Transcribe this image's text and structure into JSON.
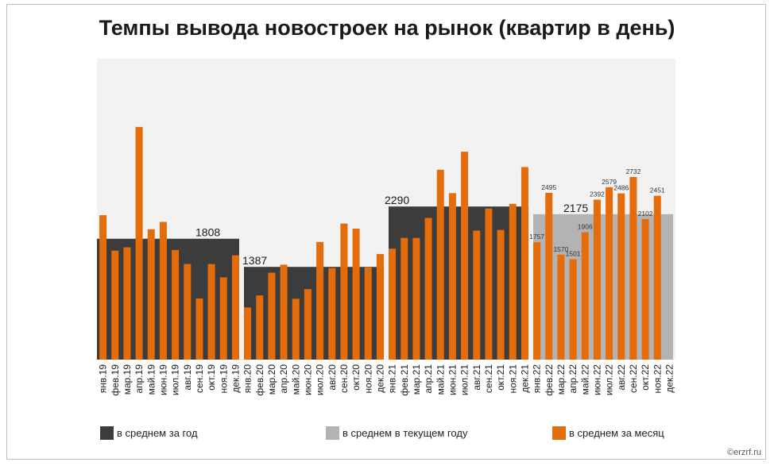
{
  "title": "Темпы вывода новостроек на рынок (квартир в день)",
  "watermark": "©erzrf.ru",
  "colors": {
    "plot_bg": "#f2f2f2",
    "year_avg": "#3c3c3c",
    "current_year_avg": "#b3b3b3",
    "monthly": "#e46c0a"
  },
  "legend": [
    {
      "label": "в среднем за год",
      "color": "#3c3c3c"
    },
    {
      "label": "в среднем в текущем году",
      "color": "#b3b3b3"
    },
    {
      "label": "в среднем за месяц",
      "color": "#e46c0a"
    }
  ],
  "chart_data": {
    "type": "bar",
    "title": "Темпы вывода новостроек на рынок (квартир в день)",
    "ylim": [
      0,
      4500
    ],
    "grid": false,
    "legend_position": "bottom",
    "categories": [
      "янв.19",
      "фев.19",
      "мар.19",
      "апр.19",
      "май.19",
      "июн.19",
      "июл.19",
      "авг.19",
      "сен.19",
      "окт.19",
      "ноя.19",
      "дек.19",
      "янв.20",
      "фев.20",
      "мар.20",
      "апр.20",
      "май.20",
      "июн.20",
      "июл.20",
      "авг.20",
      "сен.20",
      "окт.20",
      "ноя.20",
      "дек.20",
      "янв.21",
      "фев.21",
      "мар.21",
      "апр.21",
      "май.21",
      "июн.21",
      "июл.21",
      "авг.21",
      "сен.21",
      "окт.21",
      "ноя.21",
      "дек.21",
      "янв.22",
      "фев.22",
      "мар.22",
      "апр.22",
      "май.22",
      "июн.22",
      "июл.22",
      "авг.22",
      "сен.22",
      "окт.22",
      "ноя.22",
      "дек.22"
    ],
    "annual_averages": [
      {
        "period": "2019",
        "value": 1808,
        "label": "1808",
        "kind": "year"
      },
      {
        "period": "2020",
        "value": 1387,
        "label": "1387",
        "kind": "year"
      },
      {
        "period": "2021",
        "value": 2290,
        "label": "2290",
        "kind": "year"
      },
      {
        "period": "2022",
        "value": 2175,
        "label": "2175",
        "kind": "current_year"
      }
    ],
    "series": [
      {
        "name": "в среднем за месяц",
        "values": [
          2160,
          1630,
          1680,
          3480,
          1950,
          2060,
          1640,
          1430,
          915,
          1430,
          1230,
          1560,
          780,
          960,
          1300,
          1420,
          910,
          1055,
          1760,
          1370,
          2035,
          1960,
          1380,
          1580,
          1660,
          1820,
          1820,
          2120,
          2840,
          2490,
          3110,
          1930,
          2260,
          1940,
          2330,
          2880,
          1757,
          2495,
          1570,
          1501,
          1906,
          2392,
          2579,
          2486,
          2732,
          2102,
          2451,
          null
        ],
        "data_labels": [
          "",
          "",
          "",
          "",
          "",
          "",
          "",
          "",
          "",
          "",
          "",
          "",
          "",
          "",
          "",
          "",
          "",
          "",
          "",
          "",
          "",
          "",
          "",
          "",
          "",
          "",
          "",
          "",
          "",
          "",
          "",
          "",
          "",
          "",
          "",
          "",
          "1757",
          "2495",
          "1570",
          "1501",
          "1906",
          "2392",
          "2579",
          "2486",
          "2732",
          "2102",
          "2451",
          ""
        ]
      }
    ]
  }
}
